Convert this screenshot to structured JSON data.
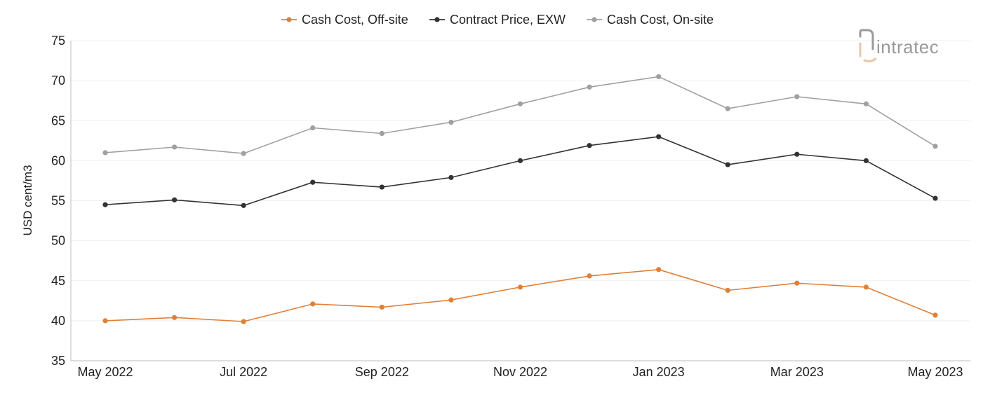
{
  "chart_data": {
    "type": "line",
    "ylabel": "USD cent/m3",
    "ylim": [
      35,
      75
    ],
    "yticks": [
      "35",
      "40",
      "45",
      "50",
      "55",
      "60",
      "65",
      "70",
      "75"
    ],
    "x": [
      "May 2022",
      "Jun 2022",
      "Jul 2022",
      "Aug 2022",
      "Sep 2022",
      "Oct 2022",
      "Nov 2022",
      "Dec 2022",
      "Jan 2023",
      "Feb 2023",
      "Mar 2023",
      "Apr 2023",
      "May 2023"
    ],
    "xtick_labels": [
      "May 2022",
      "Jul 2022",
      "Sep 2022",
      "Nov 2022",
      "Jan 2023",
      "Mar 2023",
      "May 2023"
    ],
    "grid": true,
    "legend_position": "top-center",
    "series": [
      {
        "name": "Cash Cost, Off-site",
        "color": "#e07f36",
        "values": [
          40.0,
          40.4,
          39.9,
          42.1,
          41.7,
          42.6,
          44.2,
          45.6,
          46.4,
          43.8,
          44.7,
          44.2,
          40.7
        ]
      },
      {
        "name": "Contract Price, EXW",
        "color": "#333333",
        "values": [
          54.5,
          55.1,
          54.4,
          57.3,
          56.7,
          57.9,
          60.0,
          61.9,
          63.0,
          59.5,
          60.8,
          60.0,
          55.3
        ]
      },
      {
        "name": "Cash Cost, On-site",
        "color": "#a0a0a0",
        "values": [
          61.0,
          61.7,
          60.9,
          64.1,
          63.4,
          64.8,
          67.1,
          69.2,
          70.5,
          66.5,
          68.0,
          67.1,
          61.8
        ]
      }
    ]
  },
  "logo": {
    "text": "intratec",
    "icon": "intratec-logo-icon"
  }
}
